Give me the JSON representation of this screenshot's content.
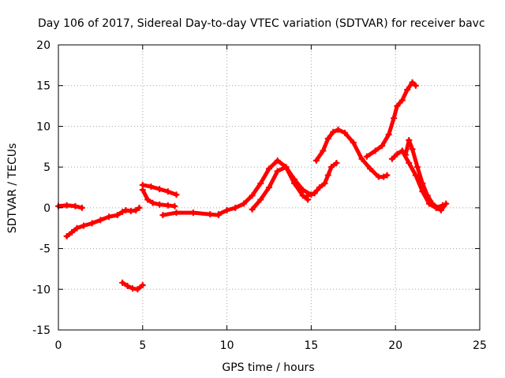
{
  "chart_data": {
    "type": "scatter",
    "title": "Day 106 of 2017, Sidereal Day-to-day VTEC variation (SDTVAR) for receiver bavc",
    "xlabel": "GPS time / hours",
    "ylabel": "SDTVAR / TECUs",
    "xlim": [
      0,
      25
    ],
    "ylim": [
      -15,
      20
    ],
    "xticks": [
      0,
      5,
      10,
      15,
      20,
      25
    ],
    "yticks": [
      -15,
      -10,
      -5,
      0,
      5,
      10,
      15,
      20
    ],
    "grid": true,
    "marker_color": "#ff0000",
    "series": [
      {
        "name": "seg1",
        "x": [
          0.0,
          0.5,
          1.0,
          1.4
        ],
        "y": [
          0.2,
          0.3,
          0.2,
          0.0
        ]
      },
      {
        "name": "seg2",
        "x": [
          0.5,
          0.8,
          1.1,
          1.5,
          2.0,
          2.5,
          3.0,
          3.5,
          3.8,
          4.0,
          4.3,
          4.6,
          4.8
        ],
        "y": [
          -3.5,
          -3.0,
          -2.5,
          -2.2,
          -1.9,
          -1.5,
          -1.1,
          -0.9,
          -0.5,
          -0.3,
          -0.4,
          -0.3,
          0.0
        ]
      },
      {
        "name": "seg3",
        "x": [
          3.8,
          4.1,
          4.4,
          4.7,
          5.0
        ],
        "y": [
          -9.2,
          -9.6,
          -9.9,
          -10.0,
          -9.5
        ]
      },
      {
        "name": "seg4",
        "x": [
          5.0,
          5.5,
          6.0,
          6.5,
          7.0
        ],
        "y": [
          2.8,
          2.6,
          2.3,
          2.0,
          1.6
        ]
      },
      {
        "name": "seg5",
        "x": [
          5.0,
          5.3,
          5.6,
          6.0,
          6.5,
          6.9
        ],
        "y": [
          2.2,
          1.0,
          0.6,
          0.4,
          0.3,
          0.2
        ]
      },
      {
        "name": "seg6",
        "x": [
          6.2,
          7.0,
          8.0,
          9.0,
          9.5
        ],
        "y": [
          -0.9,
          -0.6,
          -0.6,
          -0.8,
          -0.9
        ]
      },
      {
        "name": "seg7",
        "x": [
          9.5,
          10.0,
          10.5,
          11.0,
          11.5,
          12.0,
          12.5,
          13.0,
          13.5,
          14.0,
          14.5,
          15.0,
          15.2
        ],
        "y": [
          -0.8,
          -0.3,
          0.0,
          0.5,
          1.5,
          3.0,
          4.8,
          5.8,
          5.0,
          3.5,
          2.2,
          1.6,
          1.8
        ]
      },
      {
        "name": "seg8",
        "x": [
          11.5,
          12.0,
          12.5,
          13.0,
          13.5,
          14.0,
          14.5,
          14.8
        ],
        "y": [
          -0.2,
          1.0,
          2.5,
          4.5,
          5.0,
          3.0,
          1.5,
          1.0
        ]
      },
      {
        "name": "seg9",
        "x": [
          14.8,
          15.2,
          15.5,
          15.8,
          16.0,
          16.2,
          16.5
        ],
        "y": [
          1.5,
          1.8,
          2.5,
          3.0,
          4.0,
          5.0,
          5.5
        ]
      },
      {
        "name": "seg10",
        "x": [
          15.3,
          15.7,
          16.0,
          16.3,
          16.6,
          17.0,
          17.5,
          18.0,
          18.5,
          19.0,
          19.3,
          19.5
        ],
        "y": [
          5.8,
          7.0,
          8.5,
          9.3,
          9.6,
          9.2,
          8.0,
          6.0,
          4.8,
          3.8,
          3.8,
          4.0
        ]
      },
      {
        "name": "seg11",
        "x": [
          18.3,
          18.8,
          19.2,
          19.6,
          19.9,
          20.1,
          20.4,
          20.7,
          21.0,
          21.2
        ],
        "y": [
          6.3,
          7.0,
          7.6,
          9.0,
          11.0,
          12.5,
          13.2,
          14.5,
          15.4,
          15.0
        ]
      },
      {
        "name": "seg12",
        "x": [
          19.8,
          20.1,
          20.4,
          20.6,
          20.8,
          21.0,
          21.3,
          21.6,
          21.9,
          22.2,
          22.5,
          22.7,
          23.0
        ],
        "y": [
          6.0,
          6.6,
          7.0,
          6.5,
          8.3,
          7.2,
          5.0,
          3.0,
          1.5,
          0.5,
          0.0,
          -0.3,
          0.5
        ]
      },
      {
        "name": "seg13",
        "x": [
          20.4,
          20.8,
          21.2,
          21.6,
          22.0,
          22.4,
          22.8
        ],
        "y": [
          7.0,
          5.5,
          4.0,
          2.0,
          0.5,
          0.0,
          0.3
        ]
      }
    ]
  }
}
